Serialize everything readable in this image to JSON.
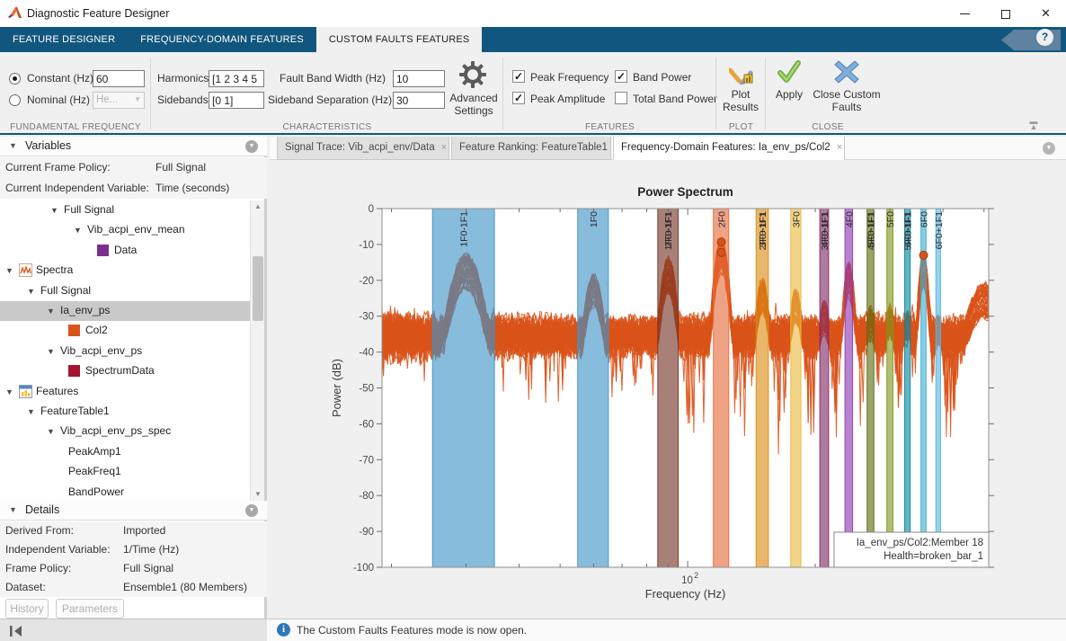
{
  "window": {
    "title": "Diagnostic Feature Designer",
    "minimize": "minimize",
    "maximize": "maximize",
    "close": "close"
  },
  "ribbon": {
    "tabs": [
      {
        "label": "FEATURE DESIGNER",
        "active": false
      },
      {
        "label": "FREQUENCY-DOMAIN FEATURES",
        "active": false
      },
      {
        "label": "CUSTOM FAULTS FEATURES",
        "active": true
      }
    ],
    "help_label": "?",
    "fundamental_frequency": {
      "section_label": "FUNDAMENTAL FREQUENCY",
      "constant_label": "Constant (Hz)",
      "constant_value": "60",
      "constant_selected": true,
      "nominal_label": "Nominal (Hz)",
      "nominal_value": "He...",
      "nominal_selected": false
    },
    "characteristics": {
      "section_label": "CHARACTERISTICS",
      "harmonics_label": "Harmonics",
      "harmonics_value": "[1 2 3 4 5",
      "sidebands_label": "Sidebands",
      "sidebands_value": "[0 1]",
      "fault_band_width_label": "Fault Band Width (Hz)",
      "fault_band_width_value": "10",
      "sideband_separation_label": "Sideband Separation (Hz)",
      "sideband_separation_value": "30",
      "advanced_settings_label": "Advanced Settings"
    },
    "features": {
      "section_label": "FEATURES",
      "checkbox_rows": [
        [
          {
            "label": "Peak Frequency",
            "checked": true
          },
          {
            "label": "Band Power",
            "checked": true
          }
        ],
        [
          {
            "label": "Peak Amplitude",
            "checked": true
          },
          {
            "label": "Total Band Power",
            "checked": false
          }
        ]
      ]
    },
    "plot": {
      "section_label": "PLOT",
      "button_label": "Plot Results"
    },
    "close": {
      "section_label": "CLOSE",
      "apply_label": "Apply",
      "close_label": "Close Custom Faults"
    }
  },
  "left_panel": {
    "variables": {
      "header": "Variables",
      "info_rows": [
        {
          "label": "Current Frame Policy:",
          "value": "Full Signal"
        },
        {
          "label": "Current Independent Variable:",
          "value": "Time (seconds)"
        }
      ],
      "tree": [
        {
          "label": "Full Signal",
          "indent": 56,
          "expander": true
        },
        {
          "label": "Vib_acpi_env_mean",
          "indent": 82,
          "expander": true
        },
        {
          "label": "Data",
          "indent": 108,
          "swatch": "#7E2F8E"
        },
        {
          "label": "Spectra",
          "indent": 6,
          "expander": true,
          "icon": "spectra"
        },
        {
          "label": "Full Signal",
          "indent": 30,
          "expander": true
        },
        {
          "label": "Ia_env_ps",
          "indent": 52,
          "expander": true,
          "selected": true
        },
        {
          "label": "Col2",
          "indent": 76,
          "swatch": "#D95319"
        },
        {
          "label": "Vib_acpi_env_ps",
          "indent": 52,
          "expander": true
        },
        {
          "label": "SpectrumData",
          "indent": 76,
          "swatch": "#A2142F"
        },
        {
          "label": "Features",
          "indent": 6,
          "expander": true,
          "icon": "features"
        },
        {
          "label": "FeatureTable1",
          "indent": 30,
          "expander": true
        },
        {
          "label": "Vib_acpi_env_ps_spec",
          "indent": 52,
          "expander": true
        },
        {
          "label": "PeakAmp1",
          "indent": 76
        },
        {
          "label": "PeakFreq1",
          "indent": 76
        },
        {
          "label": "BandPower",
          "indent": 76
        }
      ]
    },
    "details": {
      "header": "Details",
      "rows": [
        {
          "label": "Derived From:",
          "value": "Imported"
        },
        {
          "label": "Independent Variable:",
          "value": "1/Time (Hz)"
        },
        {
          "label": "Frame Policy:",
          "value": "Full Signal"
        },
        {
          "label": "Dataset:",
          "value": "Ensemble1 (80 Members)"
        }
      ],
      "buttons": [
        "History",
        "Parameters"
      ]
    }
  },
  "document_tabs": [
    {
      "label": "Signal Trace: Vib_acpi_env/Data",
      "active": false,
      "close": "x"
    },
    {
      "label": "Feature Ranking: FeatureTable1",
      "active": false,
      "close": "x"
    },
    {
      "label": "Frequency-Domain Features: Ia_env_ps/Col2",
      "active": true,
      "close": "x"
    }
  ],
  "status_bar": {
    "message": "The Custom Faults Features mode is now open."
  },
  "chart_data": {
    "type": "line",
    "title": "Power Spectrum",
    "xlabel": "Frequency (Hz)",
    "ylabel": "Power (dB)",
    "xscale": "log",
    "xlim": [
      19,
      513
    ],
    "ylim": [
      -100,
      0
    ],
    "yticks": [
      0,
      -10,
      -20,
      -30,
      -40,
      -50,
      -60,
      -70,
      -80,
      -90,
      -100
    ],
    "xtick_major": {
      "value": 100,
      "base": "10",
      "exp": "2"
    },
    "xtick_minor": [
      20,
      30,
      40,
      50,
      60,
      70,
      80,
      90,
      200,
      300,
      400,
      500
    ],
    "grid": false,
    "series_color": "#D95319",
    "num_members": 80,
    "noise_floor_db": -36,
    "peaks": [
      {
        "freq": 30,
        "peak_db": -13,
        "sigma": 0.022
      },
      {
        "freq": 60,
        "peak_db": -18.5,
        "sigma": 0.013
      },
      {
        "freq": 90,
        "peak_db": -14,
        "sigma": 0.011
      },
      {
        "freq": 120,
        "peak_db": -8.5,
        "sigma": 0.01
      },
      {
        "freq": 150,
        "peak_db": -20,
        "sigma": 0.0095
      },
      {
        "freq": 180,
        "peak_db": -23,
        "sigma": 0.009
      },
      {
        "freq": 210,
        "peak_db": -26,
        "sigma": 0.0085
      },
      {
        "freq": 240,
        "peak_db": -15.5,
        "sigma": 0.008
      },
      {
        "freq": 270,
        "peak_db": -28,
        "sigma": 0.008
      },
      {
        "freq": 300,
        "peak_db": -27,
        "sigma": 0.0075
      },
      {
        "freq": 330,
        "peak_db": -29,
        "sigma": 0.007
      },
      {
        "freq": 360,
        "peak_db": -12.5,
        "sigma": 0.007
      },
      {
        "freq": 390,
        "peak_db": -30,
        "sigma": 0.0065
      },
      {
        "freq": 500,
        "peak_db": -21,
        "sigma": 0.025
      }
    ],
    "fault_bands": [
      {
        "range": [
          25,
          35
        ],
        "labels": [
          "1F0-1F1"
        ],
        "color": "#3D93C8"
      },
      {
        "range": [
          55,
          65
        ],
        "labels": [
          "1F0"
        ],
        "color": "#3D93C8"
      },
      {
        "range": [
          85,
          95
        ],
        "labels": [
          "2F0-1F1",
          "1F0+1F1"
        ],
        "color": "#743224"
      },
      {
        "range": [
          115,
          125
        ],
        "labels": [
          "2F0"
        ],
        "color": "#E76939"
      },
      {
        "range": [
          145,
          155
        ],
        "labels": [
          "3F0-1F1",
          "2F0+1F1"
        ],
        "color": "#DA8A10"
      },
      {
        "range": [
          175,
          185
        ],
        "labels": [
          "3F0"
        ],
        "color": "#EABA3F"
      },
      {
        "range": [
          205,
          215
        ],
        "labels": [
          "4F0-1F1",
          "3F0+1F1"
        ],
        "color": "#802863"
      },
      {
        "range": [
          235,
          245
        ],
        "labels": [
          "4F0"
        ],
        "color": "#8A35B0"
      },
      {
        "range": [
          265,
          275
        ],
        "labels": [
          "5F0-1F1",
          "4F0+1F1"
        ],
        "color": "#5C6C10"
      },
      {
        "range": [
          295,
          305
        ],
        "labels": [
          "5F0"
        ],
        "color": "#7E9818"
      },
      {
        "range": [
          325,
          335
        ],
        "labels": [
          "6F0-1F1",
          "5F0+1F1"
        ],
        "color": "#0586A0"
      },
      {
        "range": [
          355,
          365
        ],
        "labels": [
          "6F0"
        ],
        "color": "#3CADD4"
      },
      {
        "range": [
          385,
          395
        ],
        "labels": [
          "6F0+1F1"
        ],
        "color": "#56B6E0"
      }
    ],
    "band_alpha": 0.62,
    "markers": [
      {
        "x": 120,
        "y": -9.3
      },
      {
        "x": 120,
        "y": -12.2
      },
      {
        "x": 360,
        "y": -13
      }
    ],
    "datatip": {
      "lines": [
        "Ia_env_ps/Col2:Member 18",
        "Health=broken_bar_1"
      ]
    }
  }
}
